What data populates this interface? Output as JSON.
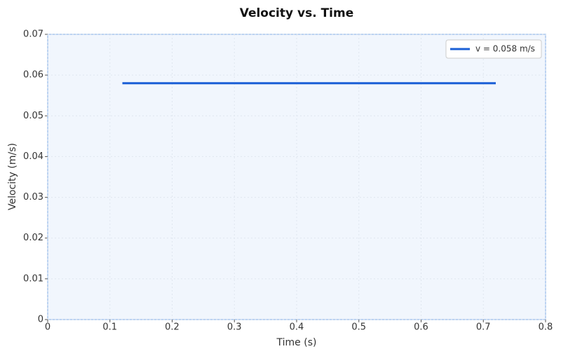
{
  "chart_data": {
    "type": "line",
    "title": "Velocity vs. Time",
    "xlabel": "Time (s)",
    "ylabel": "Velocity (m/s)",
    "x": [
      0.12,
      0.72
    ],
    "series": [
      {
        "name": "v = 0.058 m/s",
        "color": "#1a5fd6",
        "values": [
          0.058,
          0.058
        ]
      }
    ],
    "xlim": [
      0,
      0.8
    ],
    "xticks": [
      0,
      0.1,
      0.2,
      0.3,
      0.4,
      0.5,
      0.6,
      0.7,
      0.8
    ],
    "ylim": [
      0,
      0.07
    ],
    "yticks": [
      0,
      0.01,
      0.02,
      0.03,
      0.04,
      0.05,
      0.06,
      0.07
    ],
    "grid": true,
    "legend": "upper-right"
  }
}
